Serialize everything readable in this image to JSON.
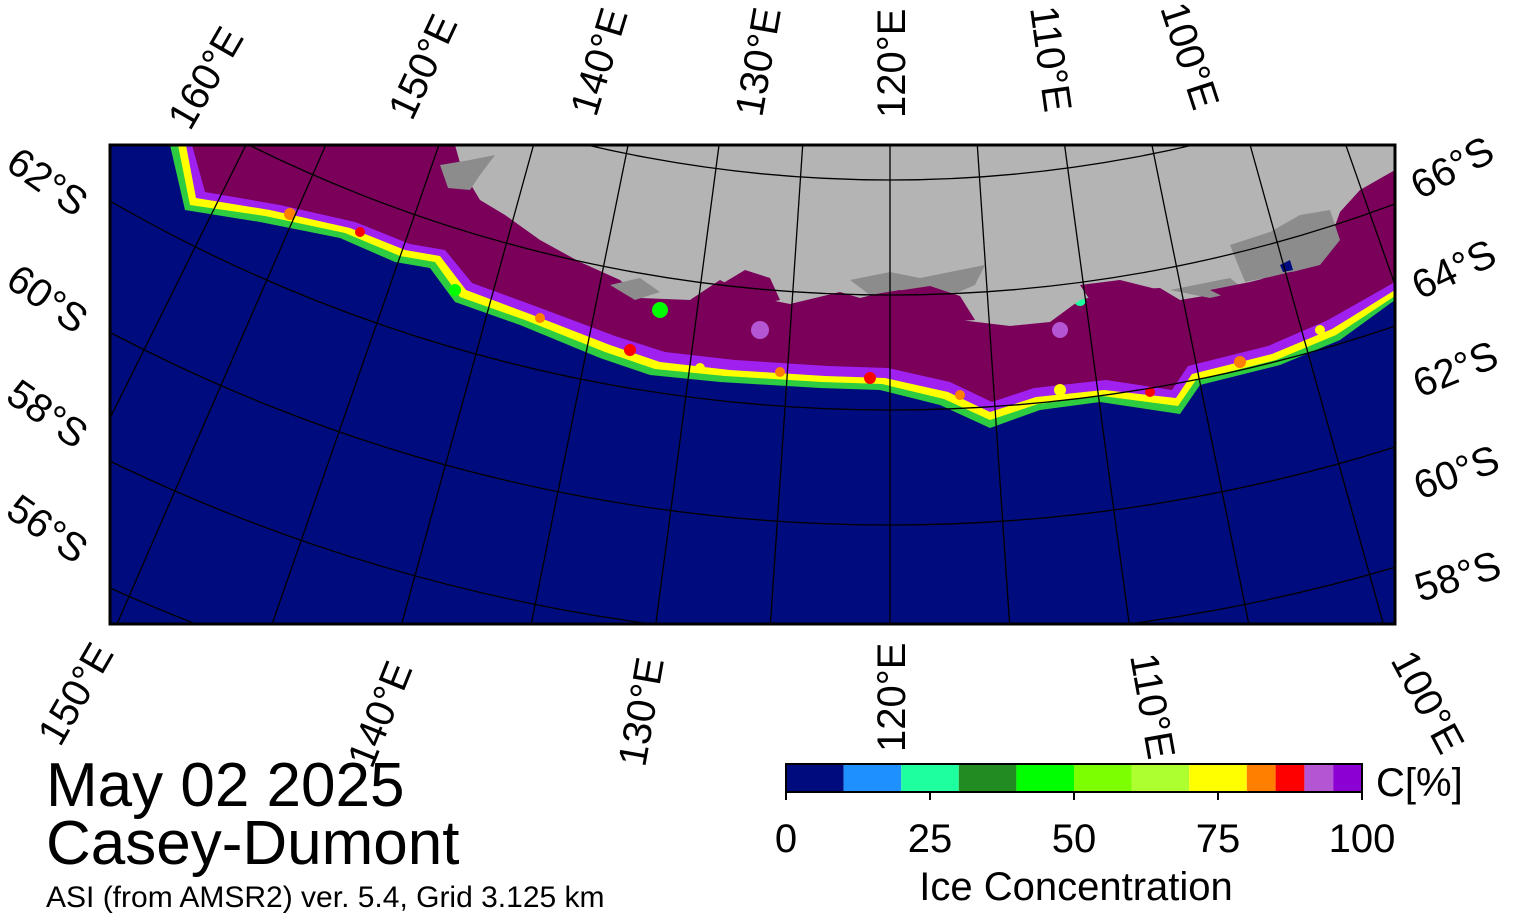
{
  "title": {
    "date": "May 02 2025",
    "region": "Casey-Dumont",
    "source": "ASI (from AMSR2) ver. 5.4,  Grid 3.125 km"
  },
  "map": {
    "projection": "polar stereographic (south)",
    "colors": {
      "ocean": "#000c7d",
      "land": "#b4b4b4",
      "ice_shelf": "#8c8c8c",
      "ice_full": "#7a005a",
      "frame": "#000000",
      "graticule": "#000000"
    },
    "top_lon_labels": [
      "160°E",
      "150°E",
      "140°E",
      "130°E",
      "120°E",
      "110°E",
      "100°E"
    ],
    "bottom_lon_labels": [
      "150°E",
      "140°E",
      "130°E",
      "120°E",
      "110°E",
      "100°E"
    ],
    "left_lat_labels": [
      "62°S",
      "60°S",
      "58°S",
      "56°S"
    ],
    "right_lat_labels": [
      "66°S",
      "64°S",
      "62°S",
      "60°S",
      "58°S"
    ]
  },
  "colorbar": {
    "title": "Ice Concentration",
    "unit": "C[%]",
    "ticks": [
      "0",
      "25",
      "50",
      "75",
      "100"
    ],
    "tick_values": [
      0,
      25,
      50,
      75,
      100
    ],
    "range": [
      0,
      100
    ],
    "bins": [
      {
        "from": 0,
        "to": 10,
        "color": "#000c7d"
      },
      {
        "from": 10,
        "to": 20,
        "color": "#1e90ff"
      },
      {
        "from": 20,
        "to": 30,
        "color": "#1effa0"
      },
      {
        "from": 30,
        "to": 40,
        "color": "#228b22"
      },
      {
        "from": 40,
        "to": 50,
        "color": "#00ff00"
      },
      {
        "from": 50,
        "to": 60,
        "color": "#7cff00"
      },
      {
        "from": 60,
        "to": 70,
        "color": "#adff2f"
      },
      {
        "from": 70,
        "to": 80,
        "color": "#ffff00"
      },
      {
        "from": 80,
        "to": 85,
        "color": "#ff7f00"
      },
      {
        "from": 85,
        "to": 90,
        "color": "#ff0000"
      },
      {
        "from": 90,
        "to": 95,
        "color": "#b455d3"
      },
      {
        "from": 95,
        "to": 100,
        "color": "#8c00d3"
      }
    ]
  }
}
